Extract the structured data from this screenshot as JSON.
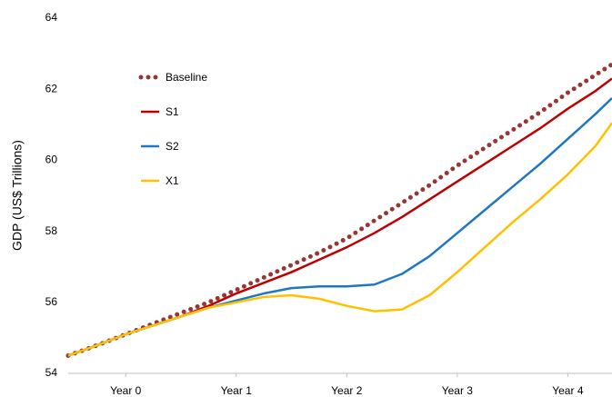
{
  "chart_data": {
    "type": "line",
    "y_label": "GDP (US$ Trillions)",
    "x": [
      -0.52,
      -0.25,
      0,
      0.25,
      0.5,
      0.75,
      1,
      1.25,
      1.5,
      1.75,
      2,
      2.25,
      2.5,
      2.75,
      3,
      3.25,
      3.5,
      3.75,
      4,
      4.25,
      4.4
    ],
    "xlim": [
      -0.52,
      4.4
    ],
    "xticks": [
      {
        "value": 0,
        "label": "Year 0"
      },
      {
        "value": 1,
        "label": "Year 1"
      },
      {
        "value": 2,
        "label": "Year 2"
      },
      {
        "value": 3,
        "label": "Year 3"
      },
      {
        "value": 4,
        "label": "Year 4"
      }
    ],
    "ylim": [
      54,
      64
    ],
    "yticks": [
      54,
      56,
      58,
      60,
      62,
      64
    ],
    "grid": false,
    "legend": "upper-left",
    "series": [
      {
        "name": "Baseline",
        "color": "#953735",
        "style": "dotted",
        "values": [
          54.5,
          54.8,
          55.1,
          55.4,
          55.7,
          56.0,
          56.35,
          56.7,
          57.05,
          57.4,
          57.8,
          58.3,
          58.8,
          59.3,
          59.85,
          60.35,
          60.85,
          61.35,
          61.9,
          62.4,
          62.7
        ]
      },
      {
        "name": "S1",
        "color": "#c00000",
        "style": "solid",
        "values": [
          54.5,
          54.8,
          55.1,
          55.35,
          55.6,
          55.9,
          56.25,
          56.55,
          56.85,
          57.2,
          57.55,
          57.95,
          58.4,
          58.9,
          59.4,
          59.9,
          60.4,
          60.9,
          61.45,
          61.95,
          62.3
        ]
      },
      {
        "name": "S2",
        "color": "#1f77c4",
        "style": "solid",
        "values": [
          54.5,
          54.8,
          55.1,
          55.35,
          55.6,
          55.85,
          56.05,
          56.25,
          56.4,
          56.45,
          56.45,
          56.5,
          56.8,
          57.3,
          57.95,
          58.6,
          59.25,
          59.9,
          60.6,
          61.3,
          61.75
        ]
      },
      {
        "name": "X1",
        "color": "#ffc000",
        "style": "solid",
        "values": [
          54.5,
          54.8,
          55.1,
          55.35,
          55.6,
          55.85,
          56.0,
          56.15,
          56.2,
          56.1,
          55.9,
          55.75,
          55.8,
          56.2,
          56.85,
          57.55,
          58.25,
          58.9,
          59.6,
          60.4,
          61.05
        ]
      }
    ]
  }
}
